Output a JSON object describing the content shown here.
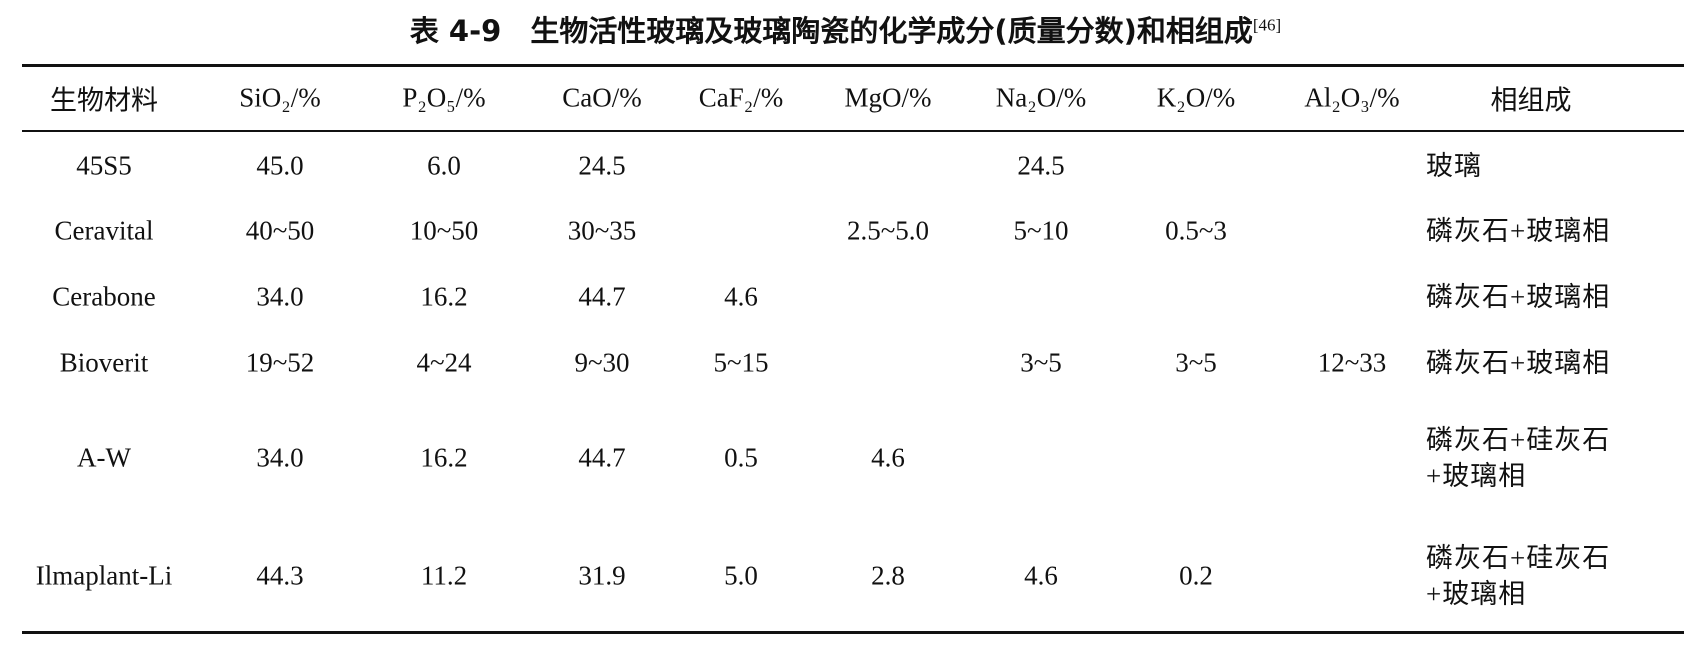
{
  "table": {
    "title": "表 4-9　生物活性玻璃及玻璃陶瓷的化学成分(质量分数)和相组成",
    "ref": "[46]",
    "header": [
      "生物材料",
      "SiO₂/%",
      "P₂O₅/%",
      "CaO/%",
      "CaF₂/%",
      "MgO/%",
      "Na₂O/%",
      "K₂O/%",
      "Al₂O₃/%",
      "相组成"
    ],
    "rows": [
      [
        "45S5",
        "45.0",
        "6.0",
        "24.5",
        null,
        null,
        "24.5",
        null,
        null,
        "玻璃"
      ],
      [
        "Ceravital",
        "40~50",
        "10~50",
        "30~35",
        null,
        "2.5~5.0",
        "5~10",
        "0.5~3",
        null,
        "磷灰石+玻璃相"
      ],
      [
        "Cerabone",
        "34.0",
        "16.2",
        "44.7",
        "4.6",
        null,
        null,
        null,
        null,
        "磷灰石+玻璃相"
      ],
      [
        "Bioverit",
        "19~52",
        "4~24",
        "9~30",
        "5~15",
        null,
        "3~5",
        "3~5",
        "12~33",
        "磷灰石+玻璃相"
      ],
      [
        "A-W",
        "34.0",
        "16.2",
        "44.7",
        "0.5",
        "4.6",
        null,
        null,
        null,
        "磷灰石+硅灰石+玻璃相"
      ],
      [
        "Ilmaplant-Li",
        "44.3",
        "11.2",
        "31.9",
        "5.0",
        "2.8",
        "4.6",
        "0.2",
        null,
        "磷灰石+硅灰石+玻璃相"
      ]
    ]
  }
}
